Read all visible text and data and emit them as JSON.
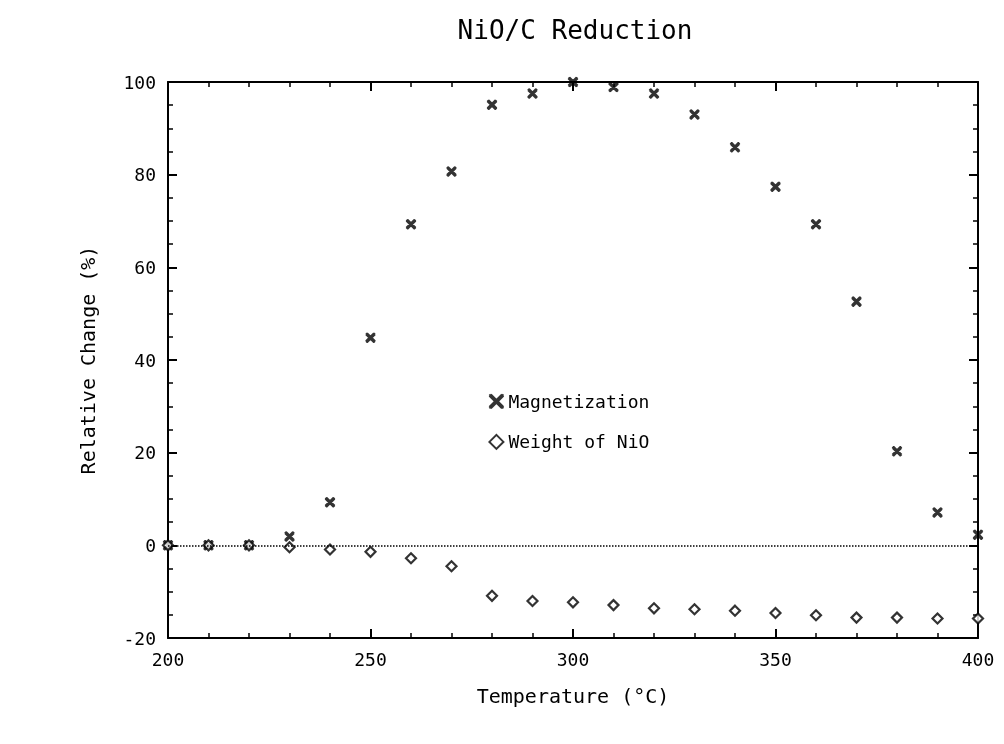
{
  "chart_data": {
    "type": "scatter",
    "title": "NiO/C Reduction",
    "xlabel": "Temperature (°C)",
    "ylabel": "Relative Change (%)",
    "x": [
      200,
      210,
      220,
      230,
      240,
      250,
      260,
      270,
      280,
      290,
      300,
      310,
      320,
      330,
      340,
      350,
      360,
      370,
      380,
      390,
      400
    ],
    "series": [
      {
        "name": "Magnetization",
        "color": "#000000",
        "marker": "cross",
        "values": [
          0,
          0,
          0,
          1.9,
          9.3,
          44.8,
          69.3,
          80.7,
          95.1,
          97.5,
          100,
          98.9,
          97.5,
          93.0,
          85.9,
          77.4,
          69.3,
          52.6,
          20.3,
          7.1,
          2.3
        ]
      },
      {
        "name": "Weight of NiO",
        "color": "#000000",
        "marker": "diamond",
        "values": [
          0,
          0,
          0,
          -0.4,
          -0.9,
          -1.4,
          -2.8,
          -4.5,
          -10.9,
          -12.0,
          -12.3,
          -12.9,
          -13.6,
          -13.8,
          -14.1,
          -14.6,
          -15.1,
          -15.6,
          -15.6,
          -15.8,
          -15.8
        ]
      }
    ],
    "xlim": [
      200,
      400
    ],
    "xticks": [
      200,
      250,
      300,
      350,
      400
    ],
    "ylim": [
      -20,
      100
    ],
    "yticks": [
      -20,
      0,
      20,
      40,
      60,
      80,
      100
    ],
    "ref_lines": [
      {
        "axis": "y",
        "value": 0,
        "line_style": "dotted",
        "color": "#000000"
      }
    ],
    "grid": false,
    "legend": "center"
  }
}
